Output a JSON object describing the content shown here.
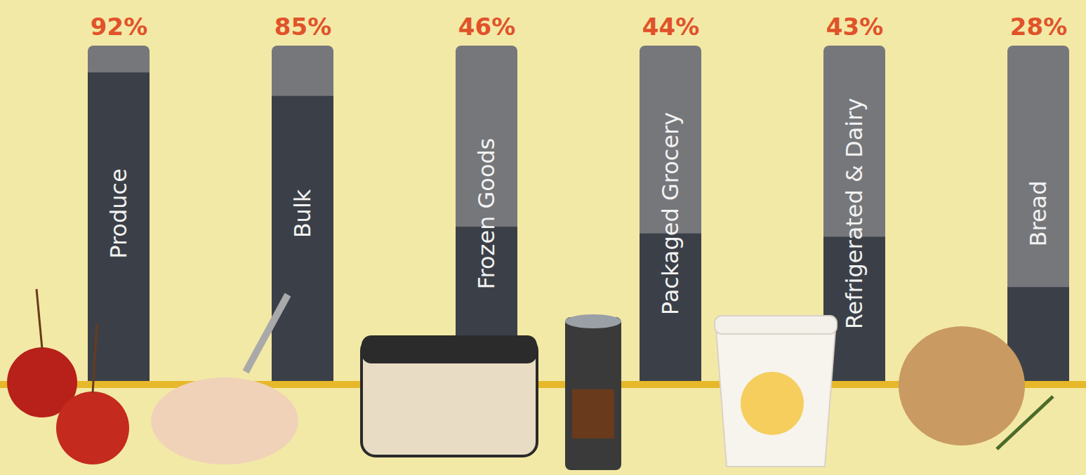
{
  "chart_data": {
    "type": "bar",
    "categories": [
      "Produce",
      "Bulk",
      "Frozen Goods",
      "Packaged Grocery",
      "Refrigerated & Dairy",
      "Bread"
    ],
    "values": [
      92,
      85,
      46,
      44,
      43,
      28
    ],
    "value_labels": [
      "92%",
      "85%",
      "46%",
      "44%",
      "43%",
      "28%"
    ],
    "data_labels": true,
    "ylim": [
      0,
      100
    ],
    "tick_labels": false,
    "color": "#3b4048"
  }
}
